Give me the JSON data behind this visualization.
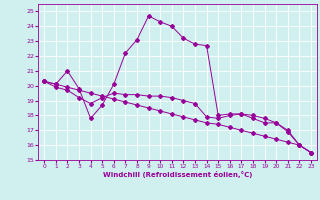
{
  "xlabel": "Windchill (Refroidissement éolien,°C)",
  "bg_color": "#cff0ee",
  "line_color": "#990099",
  "grid_color": "#ffffff",
  "xlim": [
    -0.5,
    23.5
  ],
  "ylim": [
    15,
    25.5
  ],
  "xticks": [
    0,
    1,
    2,
    3,
    4,
    5,
    6,
    7,
    8,
    9,
    10,
    11,
    12,
    13,
    14,
    15,
    16,
    17,
    18,
    19,
    20,
    21,
    22,
    23
  ],
  "yticks": [
    15,
    16,
    17,
    18,
    19,
    20,
    21,
    22,
    23,
    24,
    25
  ],
  "series1_x": [
    0,
    1,
    2,
    3,
    4,
    5,
    6,
    7,
    8,
    9,
    10,
    11,
    12,
    13,
    14,
    15,
    16,
    17,
    18,
    19,
    20,
    21,
    22,
    23
  ],
  "series1_y": [
    20.3,
    20.1,
    19.9,
    19.7,
    19.5,
    19.3,
    19.1,
    18.9,
    18.7,
    18.5,
    18.3,
    18.1,
    17.9,
    17.7,
    17.5,
    17.4,
    17.2,
    17.0,
    16.8,
    16.6,
    16.4,
    16.2,
    16.0,
    15.5
  ],
  "series2_x": [
    0,
    1,
    2,
    3,
    4,
    5,
    6,
    7,
    8,
    9,
    10,
    11,
    12,
    13,
    14,
    15,
    16,
    17,
    18,
    19,
    20,
    21,
    22,
    23
  ],
  "series2_y": [
    20.3,
    19.9,
    19.7,
    19.2,
    18.8,
    19.2,
    19.5,
    19.4,
    19.4,
    19.3,
    19.3,
    19.2,
    19.0,
    18.8,
    17.9,
    17.8,
    18.0,
    18.1,
    18.0,
    17.8,
    17.5,
    17.0,
    16.0,
    15.5
  ],
  "series3_x": [
    0,
    1,
    2,
    3,
    4,
    5,
    6,
    7,
    8,
    9,
    10,
    11,
    12,
    13,
    14,
    15,
    16,
    17,
    18,
    19,
    20,
    21,
    22,
    23
  ],
  "series3_y": [
    20.3,
    20.1,
    21.0,
    19.8,
    17.8,
    18.7,
    20.1,
    22.2,
    23.1,
    24.7,
    24.3,
    24.0,
    23.2,
    22.8,
    22.7,
    18.0,
    18.1,
    18.1,
    17.8,
    17.5,
    17.5,
    16.9,
    16.0,
    15.5
  ]
}
